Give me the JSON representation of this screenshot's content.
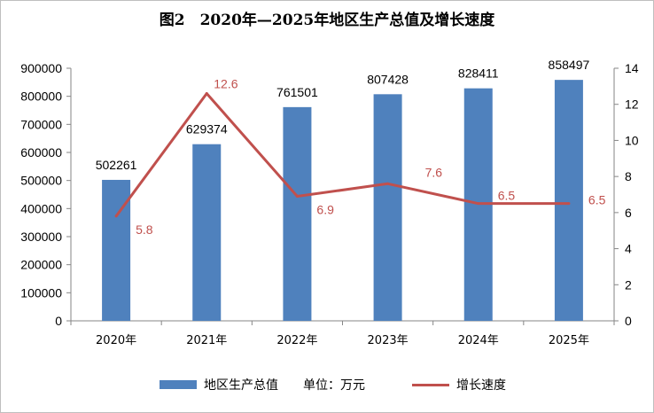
{
  "title": "图2　2020年—2025年地区生产总值及增长速度",
  "chart_data": {
    "type": "bar+line",
    "categories": [
      "2020年",
      "2021年",
      "2022年",
      "2023年",
      "2024年",
      "2025年"
    ],
    "series": [
      {
        "name": "地区生产总值　　单位：万元",
        "type": "bar",
        "axis": "left",
        "values": [
          502261,
          629374,
          761501,
          807428,
          828411,
          858497
        ],
        "color": "#4f81bd"
      },
      {
        "name": "增长速度",
        "type": "line",
        "axis": "right",
        "values": [
          5.8,
          12.6,
          6.9,
          7.6,
          6.5,
          6.5
        ],
        "color": "#c0504d"
      }
    ],
    "y_left": {
      "min": 0,
      "max": 900000,
      "step": 100000
    },
    "y_right": {
      "min": 0,
      "max": 14,
      "step": 2
    },
    "legend_position": "bottom",
    "grid": false
  }
}
